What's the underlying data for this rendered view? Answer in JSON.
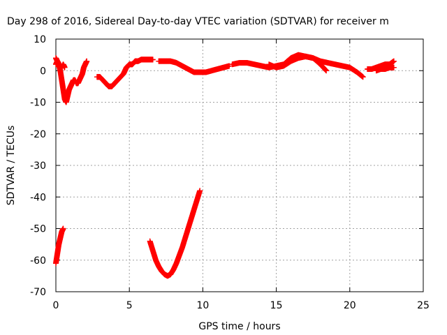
{
  "chart_data": {
    "type": "scatter",
    "title": "Day 298 of 2016, Sidereal Day-to-day VTEC variation (SDTVAR) for receiver m",
    "xlabel": "GPS time / hours",
    "ylabel": "SDTVAR / TECUs",
    "xlim": [
      0,
      25
    ],
    "ylim": [
      -70,
      10
    ],
    "xticks": [
      0,
      5,
      10,
      15,
      20,
      25
    ],
    "yticks": [
      10,
      0,
      -10,
      -20,
      -30,
      -40,
      -50,
      -60,
      -70
    ],
    "grid": true,
    "marker": "+",
    "color": "#ff0000",
    "segments": [
      {
        "x": [
          0.0,
          0.1,
          0.2,
          0.3,
          0.4,
          0.5,
          0.6,
          0.7,
          0.8,
          0.9,
          1.0,
          1.1,
          1.2,
          1.3,
          1.4,
          1.5,
          1.6,
          1.7,
          1.8,
          1.9,
          2.0,
          2.1
        ],
        "y": [
          4,
          3,
          2,
          0,
          -3,
          -6,
          -9,
          -10,
          -8,
          -6,
          -5,
          -4,
          -3,
          -3,
          -4,
          -4,
          -3,
          -2,
          -1,
          1,
          2,
          3
        ]
      },
      {
        "x": [
          0.0,
          0.1,
          0.2,
          0.3,
          0.4,
          0.5,
          0.6
        ],
        "y": [
          2,
          3,
          2,
          2,
          1,
          2,
          1
        ]
      },
      {
        "x": [
          0.0,
          0.1,
          0.2,
          0.3,
          0.4,
          0.5
        ],
        "y": [
          -61,
          -58,
          -55,
          -53,
          -51,
          -50
        ]
      },
      {
        "x": [
          2.8,
          3.0,
          3.2,
          3.4,
          3.6,
          3.8,
          4.0,
          4.2,
          4.4,
          4.6,
          4.8,
          5.0,
          5.2,
          5.4,
          5.6,
          5.8,
          6.0,
          6.2,
          6.4,
          6.6
        ],
        "y": [
          -2,
          -2,
          -3,
          -4,
          -5,
          -5,
          -4,
          -3,
          -2,
          -1,
          1,
          2,
          2,
          3,
          3,
          3.5,
          3.5,
          3.5,
          3.5,
          3.5
        ]
      },
      {
        "x": [
          7.0,
          7.4,
          7.8,
          8.2,
          8.6,
          9.0,
          9.4,
          9.8,
          10.2,
          10.6,
          11.0,
          11.4,
          11.8
        ],
        "y": [
          3,
          3,
          3,
          2.5,
          1.5,
          0.5,
          -0.5,
          -0.5,
          -0.5,
          0,
          0.5,
          1,
          1.5
        ]
      },
      {
        "x": [
          6.4,
          6.6,
          6.8,
          7.0,
          7.2,
          7.4,
          7.6,
          7.8,
          8.0,
          8.2,
          8.4,
          8.6,
          8.8,
          9.0,
          9.2,
          9.4,
          9.6,
          9.8
        ],
        "y": [
          -54,
          -57,
          -60,
          -62,
          -63.5,
          -64.5,
          -65,
          -64.5,
          -63,
          -61,
          -58.5,
          -56,
          -53,
          -50,
          -47,
          -44,
          -41,
          -38
        ]
      },
      {
        "x": [
          12.0,
          12.5,
          13.0,
          13.5,
          14.0,
          14.5,
          15.0,
          15.5,
          16.0,
          16.5,
          17.0,
          17.5,
          18.0,
          18.5,
          19.0,
          19.5,
          20.0,
          20.5,
          20.9
        ],
        "y": [
          2,
          2.5,
          2.5,
          2,
          1.5,
          1,
          1.5,
          2,
          4,
          5,
          4.5,
          4,
          3,
          2.5,
          2,
          1.5,
          1,
          -0.5,
          -2
        ]
      },
      {
        "x": [
          14.5,
          15.0,
          15.5,
          16.0,
          16.5,
          17.0,
          17.5,
          18.0,
          18.4
        ],
        "y": [
          2,
          1,
          1.5,
          3,
          4,
          4.5,
          4,
          2,
          0
        ]
      },
      {
        "x": [
          21.2,
          21.5,
          21.8,
          22.1,
          22.4,
          22.7,
          23.0
        ],
        "y": [
          0.5,
          0.5,
          1,
          1.5,
          2,
          2,
          3
        ]
      },
      {
        "x": [
          21.8,
          22.1,
          22.4,
          22.7,
          23.0
        ],
        "y": [
          0,
          0.5,
          0.5,
          1,
          1
        ]
      }
    ]
  }
}
